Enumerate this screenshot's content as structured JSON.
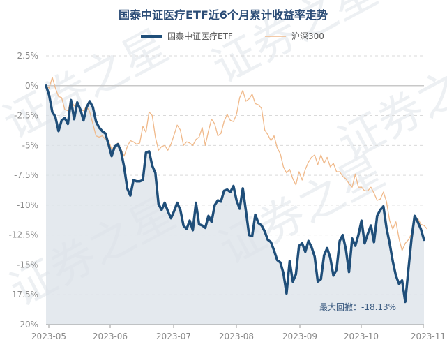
{
  "chart_data": {
    "type": "line",
    "title": "国泰中证医疗ETF近6个月累计收益率走势",
    "xlabel": "",
    "ylabel": "",
    "ylim": [
      -20,
      2.5
    ],
    "yticks": [
      "2.5%",
      "0%",
      "-2.5%",
      "-5%",
      "-7.5%",
      "-10%",
      "-12.5%",
      "-15%",
      "-17.5%",
      "-20%"
    ],
    "xtick_labels": [
      "2023-05",
      "2023-06",
      "2023-07",
      "2023-08",
      "2023-09",
      "2023-10",
      "2023-11"
    ],
    "grid": "horizontal-dashed",
    "legend_position": "top-center",
    "colors": {
      "etf": "#1f4e79",
      "csi300": "#f0b98a",
      "area": "#dbe2e8"
    },
    "annotation": "最大回撤：-18.13%",
    "watermark": "证券之星",
    "series": [
      {
        "name": "国泰中证医疗ETF",
        "values": [
          0,
          -0.8,
          -2.2,
          -2.6,
          -3.8,
          -2.9,
          -2.7,
          -3.2,
          -1.2,
          -2.8,
          -1.4,
          -2.0,
          -2.9,
          -1.8,
          -1.3,
          -1.8,
          -3.0,
          -3.5,
          -3.8,
          -4.0,
          -4.9,
          -5.9,
          -5.1,
          -4.9,
          -5.5,
          -6.8,
          -8.6,
          -9.2,
          -7.9,
          -8.0,
          -8.0,
          -7.9,
          -5.6,
          -5.5,
          -6.7,
          -7.3,
          -9.9,
          -10.4,
          -9.8,
          -10.5,
          -11.1,
          -10.5,
          -9.8,
          -10.4,
          -11.7,
          -12.0,
          -11.3,
          -12.1,
          -9.8,
          -11.6,
          -11.7,
          -11.9,
          -10.9,
          -11.4,
          -10.0,
          -9.6,
          -9.7,
          -8.8,
          -8.7,
          -8.9,
          -8.4,
          -9.6,
          -10.3,
          -8.6,
          -10.5,
          -12.5,
          -12.6,
          -10.8,
          -11.5,
          -11.7,
          -12.2,
          -12.9,
          -13.1,
          -13.8,
          -14.6,
          -14.8,
          -15.7,
          -17.4,
          -14.7,
          -16.4,
          -15.8,
          -13.4,
          -13.2,
          -13.9,
          -13.0,
          -13.5,
          -14.3,
          -16.4,
          -16.2,
          -14.2,
          -13.6,
          -14.4,
          -15.9,
          -15.4,
          -13.0,
          -12.5,
          -13.7,
          -15.6,
          -12.8,
          -13.4,
          -12.5,
          -11.3,
          -13.2,
          -12.4,
          -11.7,
          -13.1,
          -10.9,
          -10.4,
          -10.1,
          -11.9,
          -13.2,
          -14.7,
          -15.9,
          -16.6,
          -16.3,
          -18.1,
          -15.4,
          -12.8,
          -10.9,
          -11.4,
          -12.0,
          -12.9
        ]
      },
      {
        "name": "沪深300",
        "values": [
          0,
          -0.2,
          0.7,
          -0.2,
          -0.9,
          -1.0,
          -2.0,
          -2.1,
          -1.2,
          -1.7,
          -1.4,
          -2.0,
          -2.1,
          -1.7,
          -2.2,
          -3.2,
          -4.2,
          -4.3,
          -4.2,
          -4.5,
          -4.6,
          -5.3,
          -5.1,
          -4.8,
          -5.3,
          -5.9,
          -5.1,
          -4.6,
          -4.7,
          -4.9,
          -4.8,
          -3.4,
          -3.9,
          -2.2,
          -2.5,
          -4.3,
          -5.4,
          -5.1,
          -5.0,
          -5.4,
          -4.9,
          -4.1,
          -3.3,
          -3.7,
          -5.0,
          -4.7,
          -4.8,
          -5.0,
          -4.5,
          -4.3,
          -3.5,
          -5.0,
          -3.8,
          -2.8,
          -3.2,
          -4.2,
          -4.0,
          -3.0,
          -2.4,
          -2.9,
          -3.0,
          -2.4,
          -1.0,
          -0.4,
          -1.3,
          -1.1,
          -0.7,
          -1.5,
          -1.6,
          -1.9,
          -3.7,
          -4.1,
          -4.6,
          -4.2,
          -5.2,
          -5.7,
          -6.8,
          -7.3,
          -7.0,
          -7.8,
          -8.3,
          -7.2,
          -7.9,
          -7.0,
          -6.4,
          -6.0,
          -5.8,
          -6.6,
          -5.8,
          -6.5,
          -6.0,
          -6.8,
          -6.5,
          -7.2,
          -7.2,
          -7.6,
          -7.8,
          -8.2,
          -8.5,
          -7.4,
          -8.5,
          -8.5,
          -8.8,
          -8.8,
          -8.5,
          -9.0,
          -9.6,
          -9.5,
          -8.9,
          -9.7,
          -11.3,
          -12.0,
          -11.4,
          -12.8,
          -13.8,
          -13.2,
          -12.9,
          -12.4,
          -11.2,
          -11.1,
          -11.6,
          -11.7,
          -12.0
        ]
      }
    ]
  }
}
